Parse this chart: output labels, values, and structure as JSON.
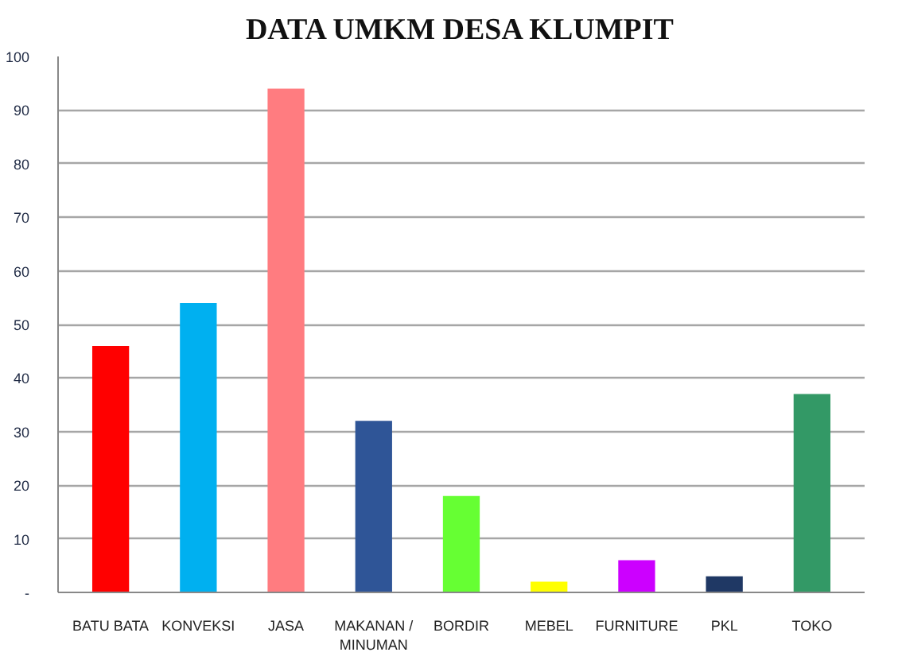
{
  "chart_data": {
    "type": "bar",
    "title": "DATA UMKM DESA KLUMPIT",
    "categories": [
      "BATU BATA",
      "KONVEKSI",
      "JASA",
      "MAKANAN / MINUMAN",
      "BORDIR",
      "MEBEL",
      "FURNITURE",
      "PKL",
      "TOKO"
    ],
    "values": [
      46,
      54,
      94,
      32,
      18,
      2,
      6,
      3,
      37
    ],
    "colors": [
      "#ff0000",
      "#00b0f0",
      "#ff7c80",
      "#2f5597",
      "#66ff33",
      "#ffff00",
      "#cc00ff",
      "#1f3864",
      "#339966"
    ],
    "ylim": [
      0,
      100
    ],
    "yticks": [
      {
        "value": 0,
        "label": "-"
      },
      10,
      20,
      30,
      40,
      50,
      60,
      70,
      80,
      90,
      100
    ],
    "grid": "y"
  }
}
